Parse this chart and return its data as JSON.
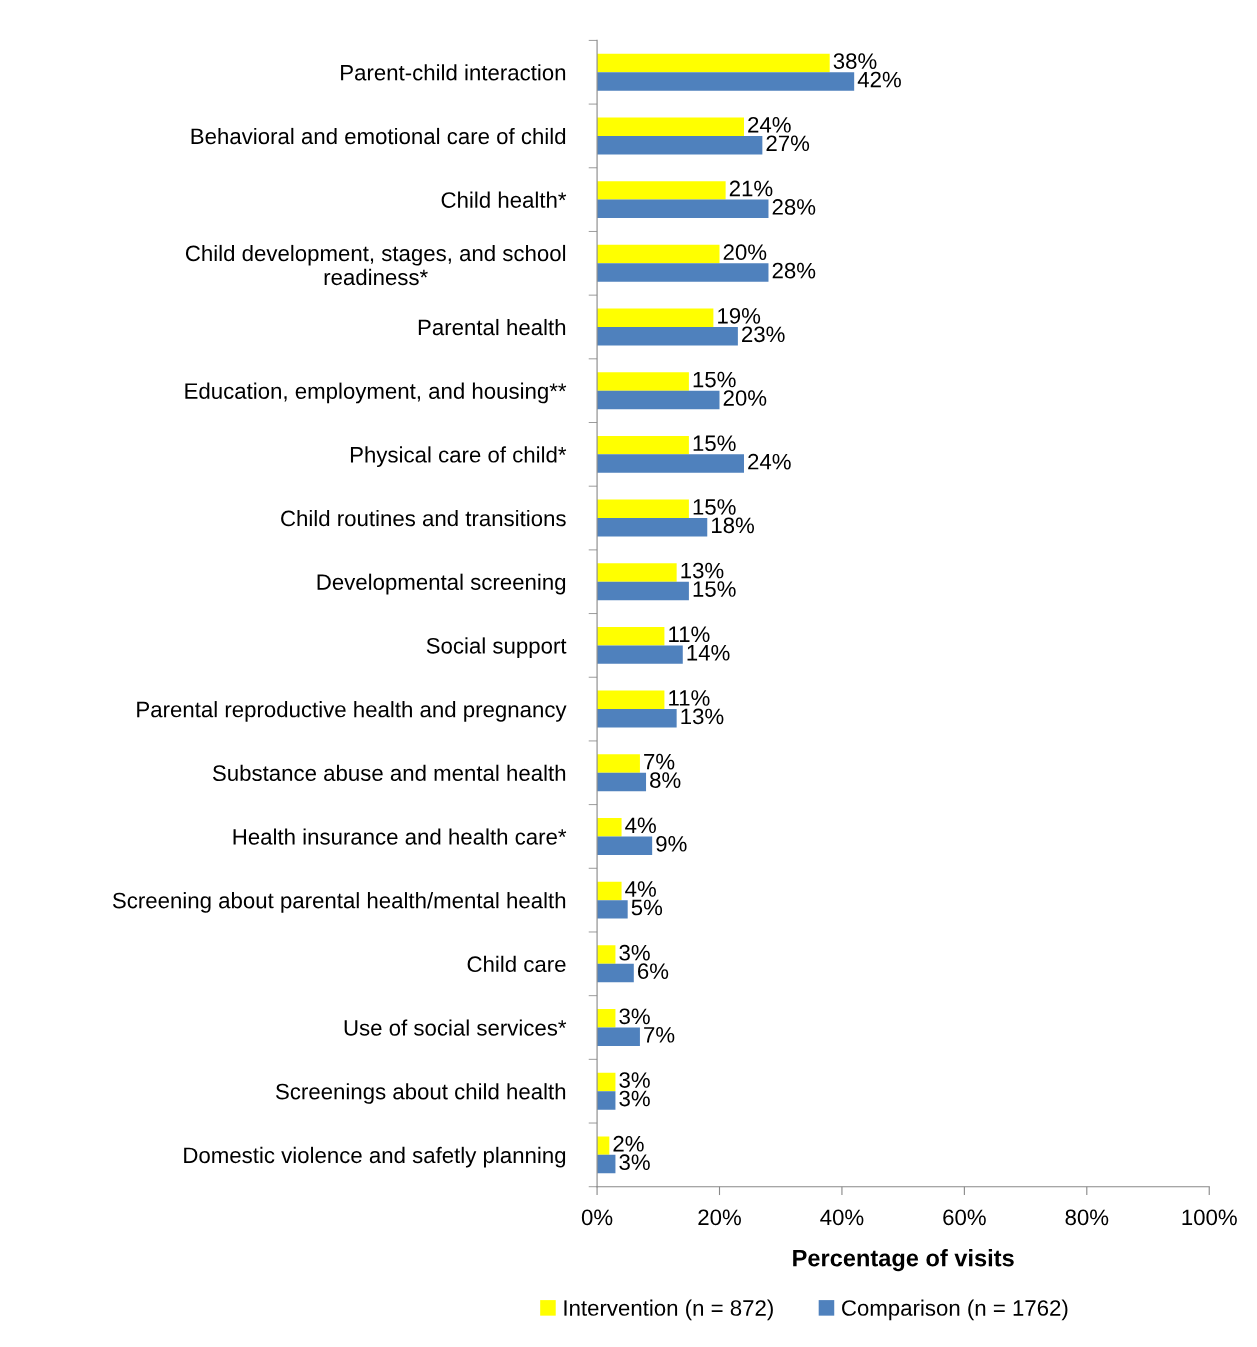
{
  "chart_data": {
    "type": "bar",
    "orientation": "horizontal",
    "xlabel": "Percentage of visits",
    "categories": [
      "Parent-child interaction",
      "Behavioral and emotional care of child",
      "Child health*",
      "Child development, stages, and school\nreadiness*",
      "Parental health",
      "Education, employment, and housing**",
      "Physical care of child*",
      "Child routines and transitions",
      "Developmental screening",
      "Social support",
      "Parental reproductive health and pregnancy",
      "Substance abuse and mental health",
      "Health insurance and health care*",
      "Screening about parental health/mental health",
      "Child care",
      "Use of social services*",
      "Screenings about child health",
      "Domestic violence and safetly planning"
    ],
    "series": [
      {
        "name": "Intervention (n = 872)",
        "color": "#ffff00",
        "values": [
          38,
          24,
          21,
          20,
          19,
          15,
          15,
          15,
          13,
          11,
          11,
          7,
          4,
          4,
          3,
          3,
          3,
          2
        ],
        "value_labels": [
          "38%",
          "24%",
          "21%",
          "20%",
          "19%",
          "15%",
          "15%",
          "15%",
          "13%",
          "11%",
          "11%",
          "7%",
          "4%",
          "4%",
          "3%",
          "3%",
          "3%",
          "2%"
        ]
      },
      {
        "name": "Comparison (n = 1762)",
        "color": "#4f81bd",
        "values": [
          42,
          27,
          28,
          28,
          23,
          20,
          24,
          18,
          15,
          14,
          13,
          8,
          9,
          5,
          6,
          7,
          3,
          3
        ],
        "value_labels": [
          "42%",
          "27%",
          "28%",
          "28%",
          "23%",
          "20%",
          "24%",
          "18%",
          "15%",
          "14%",
          "13%",
          "8%",
          "9%",
          "5%",
          "6%",
          "7%",
          "3%",
          "3%"
        ]
      }
    ],
    "xlim": [
      0,
      100
    ],
    "xticks": [
      {
        "value": 0,
        "label": "0%"
      },
      {
        "value": 20,
        "label": "20%"
      },
      {
        "value": 40,
        "label": "40%"
      },
      {
        "value": 60,
        "label": "60%"
      },
      {
        "value": 80,
        "label": "80%"
      },
      {
        "value": 100,
        "label": "100%"
      }
    ],
    "grid": false,
    "legend": "bottom"
  }
}
